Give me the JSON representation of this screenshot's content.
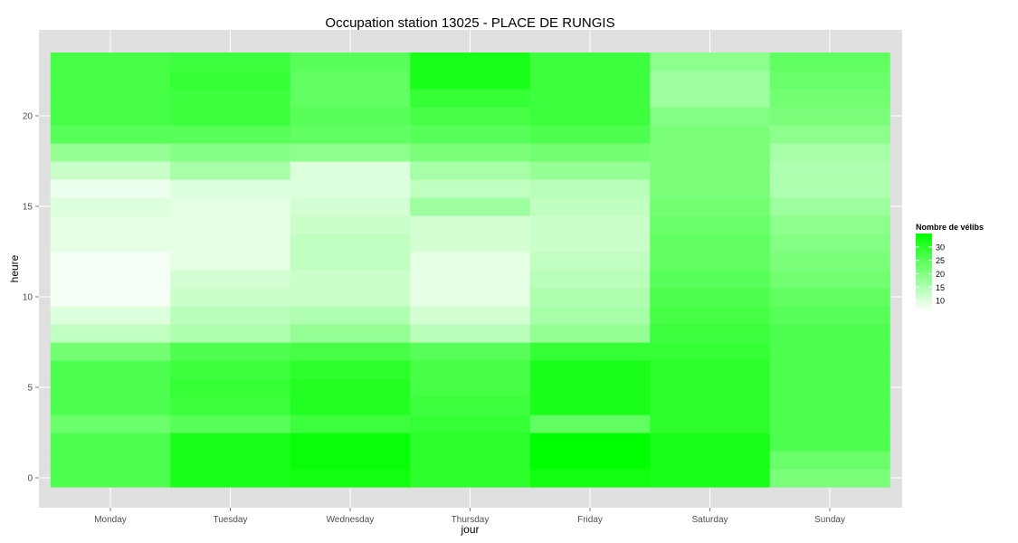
{
  "chart_data": {
    "type": "heatmap",
    "title": "Occupation station 13025 - PLACE DE RUNGIS",
    "xlabel": "jour",
    "ylabel": "heure",
    "categories": [
      "Monday",
      "Tuesday",
      "Wednesday",
      "Thursday",
      "Friday",
      "Saturday",
      "Sunday"
    ],
    "hours": [
      0,
      1,
      2,
      3,
      4,
      5,
      6,
      7,
      8,
      9,
      10,
      11,
      12,
      13,
      14,
      15,
      16,
      17,
      18,
      19,
      20,
      21,
      22,
      23
    ],
    "y_ticks": [
      0,
      5,
      10,
      15,
      20
    ],
    "ylim": [
      -0.5,
      23.5
    ],
    "grid": true,
    "values": [
      [
        26,
        32,
        33,
        30,
        33,
        32,
        21
      ],
      [
        26,
        32,
        34,
        30,
        35,
        32,
        23
      ],
      [
        26,
        32,
        34,
        30,
        35,
        32,
        26
      ],
      [
        23,
        25,
        28,
        29,
        24,
        30,
        26
      ],
      [
        26,
        28,
        31,
        28,
        32,
        30,
        26
      ],
      [
        26,
        29,
        31,
        27,
        32,
        30,
        26
      ],
      [
        26,
        28,
        30,
        27,
        32,
        30,
        26
      ],
      [
        22,
        26,
        27,
        25,
        29,
        29,
        26
      ],
      [
        13,
        15,
        18,
        14,
        18,
        28,
        26
      ],
      [
        10,
        14,
        15,
        11,
        16,
        27,
        25
      ],
      [
        7,
        12,
        12,
        9,
        15,
        26,
        24
      ],
      [
        7,
        11,
        12,
        9,
        14,
        25,
        22
      ],
      [
        7,
        9,
        13,
        9,
        13,
        24,
        21
      ],
      [
        9,
        9,
        13,
        11,
        12,
        24,
        20
      ],
      [
        9,
        9,
        12,
        11,
        12,
        23,
        19
      ],
      [
        10,
        9,
        11,
        17,
        13,
        22,
        17
      ],
      [
        8,
        10,
        10,
        13,
        14,
        21,
        15
      ],
      [
        12,
        16,
        10,
        16,
        18,
        21,
        15
      ],
      [
        18,
        20,
        19,
        21,
        22,
        21,
        16
      ],
      [
        25,
        25,
        24,
        25,
        26,
        21,
        19
      ],
      [
        27,
        28,
        25,
        27,
        28,
        20,
        21
      ],
      [
        27,
        28,
        24,
        29,
        28,
        17,
        22
      ],
      [
        27,
        29,
        24,
        32,
        28,
        17,
        23
      ],
      [
        27,
        28,
        25,
        32,
        28,
        19,
        24
      ]
    ],
    "color_scale": {
      "low": "#ffffff",
      "high": "#00ff00",
      "min": 6,
      "max": 35
    },
    "legend": {
      "title": "Nombre de vélibs",
      "position": "right",
      "ticks": [
        30,
        25,
        20,
        15,
        10
      ]
    },
    "colors": {
      "panel_background": "#e0e0e0",
      "grid": "#ffffff"
    }
  }
}
